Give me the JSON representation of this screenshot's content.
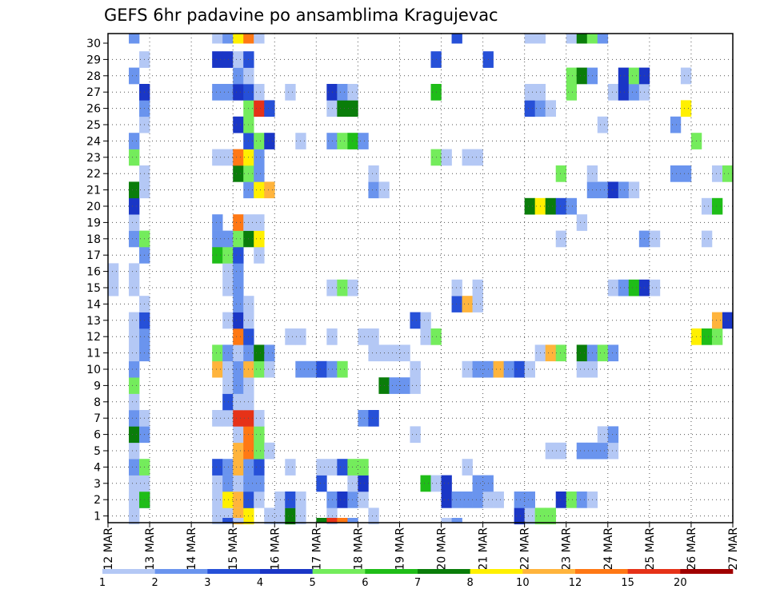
{
  "chart_data": {
    "type": "heatmap",
    "title": "GEFS 6hr padavine po ansamblima Kragujevac",
    "xlabel": "",
    "ylabel": "",
    "x_ticks": [
      "12 MAR",
      "13 MAR",
      "14 MAR",
      "15 MAR",
      "16 MAR",
      "17 MAR",
      "18 MAR",
      "19 MAR",
      "20 MAR",
      "21 MAR",
      "22 MAR",
      "23 MAR",
      "24 MAR",
      "25 MAR",
      "26 MAR",
      "27 MAR"
    ],
    "y_ticks": [
      "1",
      "2",
      "3",
      "4",
      "5",
      "6",
      "7",
      "8",
      "9",
      "10",
      "11",
      "12",
      "13",
      "14",
      "15",
      "16",
      "17",
      "18",
      "19",
      "20",
      "21",
      "22",
      "23",
      "24",
      "25",
      "26",
      "27",
      "28",
      "29",
      "30"
    ],
    "members_range": [
      1,
      30
    ],
    "time_steps_6h": 60,
    "grid": "dotted",
    "colorbar": {
      "levels": [
        "1",
        "2",
        "3",
        "4",
        "5",
        "6",
        "7",
        "8",
        "10",
        "12",
        "15",
        "20"
      ],
      "colors": [
        "#b4c8f5",
        "#6a94ee",
        "#2650d8",
        "#1a36c6",
        "#74ec5c",
        "#1fbd18",
        "#0a7d0a",
        "#fff000",
        "#ffb43c",
        "#ff7814",
        "#e63218",
        "#a00000"
      ]
    },
    "cells": [
      [
        2,
        1,
        1
      ],
      [
        2,
        2,
        1
      ],
      [
        3,
        2,
        4
      ],
      [
        10,
        1,
        1
      ],
      [
        11,
        1,
        1
      ],
      [
        12,
        1,
        9
      ],
      [
        12,
        2,
        1
      ],
      [
        13,
        1,
        8
      ],
      [
        13,
        2,
        4
      ],
      [
        15,
        1,
        1
      ],
      [
        16,
        1,
        1
      ],
      [
        17,
        1,
        7
      ],
      [
        17,
        2,
        2
      ],
      [
        18,
        1,
        1
      ],
      [
        21,
        1,
        1
      ],
      [
        25,
        1,
        1
      ],
      [
        39,
        1,
        4
      ],
      [
        40,
        1,
        1
      ],
      [
        41,
        1,
        5
      ],
      [
        42,
        1,
        5
      ],
      [
        2,
        2,
        1
      ],
      [
        3,
        2,
        6
      ],
      [
        10,
        2,
        1
      ],
      [
        11,
        2,
        8
      ],
      [
        12,
        2,
        9
      ],
      [
        13,
        2,
        3
      ],
      [
        14,
        2,
        1
      ],
      [
        16,
        2,
        1
      ],
      [
        17,
        2,
        3
      ],
      [
        18,
        2,
        1
      ],
      [
        21,
        2,
        2
      ],
      [
        22,
        2,
        4
      ],
      [
        23,
        2,
        2
      ],
      [
        24,
        2,
        1
      ],
      [
        32,
        2,
        4
      ],
      [
        33,
        2,
        2
      ],
      [
        34,
        2,
        2
      ],
      [
        35,
        2,
        2
      ],
      [
        36,
        2,
        1
      ],
      [
        37,
        2,
        1
      ],
      [
        39,
        2,
        2
      ],
      [
        40,
        2,
        2
      ],
      [
        43,
        2,
        4
      ],
      [
        44,
        2,
        5
      ],
      [
        45,
        2,
        2
      ],
      [
        46,
        2,
        1
      ],
      [
        2,
        3,
        1
      ],
      [
        3,
        3,
        1
      ],
      [
        10,
        3,
        1
      ],
      [
        11,
        3,
        2
      ],
      [
        12,
        3,
        1
      ],
      [
        13,
        3,
        2
      ],
      [
        14,
        3,
        2
      ],
      [
        20,
        3,
        3
      ],
      [
        23,
        3,
        1
      ],
      [
        24,
        3,
        4
      ],
      [
        30,
        3,
        6
      ],
      [
        31,
        3,
        1
      ],
      [
        32,
        3,
        4
      ],
      [
        35,
        3,
        2
      ],
      [
        36,
        3,
        2
      ],
      [
        2,
        4,
        2
      ],
      [
        3,
        4,
        5
      ],
      [
        10,
        4,
        3
      ],
      [
        11,
        4,
        2
      ],
      [
        12,
        4,
        9
      ],
      [
        13,
        4,
        2
      ],
      [
        14,
        4,
        3
      ],
      [
        17,
        4,
        1
      ],
      [
        20,
        4,
        1
      ],
      [
        21,
        4,
        1
      ],
      [
        22,
        4,
        3
      ],
      [
        23,
        4,
        5
      ],
      [
        24,
        4,
        5
      ],
      [
        34,
        4,
        1
      ],
      [
        2,
        5,
        1
      ],
      [
        12,
        5,
        9
      ],
      [
        13,
        5,
        10
      ],
      [
        14,
        5,
        5
      ],
      [
        15,
        5,
        1
      ],
      [
        42,
        5,
        1
      ],
      [
        43,
        5,
        1
      ],
      [
        45,
        5,
        2
      ],
      [
        46,
        5,
        2
      ],
      [
        47,
        5,
        2
      ],
      [
        48,
        5,
        1
      ],
      [
        2,
        6,
        7
      ],
      [
        3,
        6,
        2
      ],
      [
        12,
        6,
        1
      ],
      [
        13,
        6,
        10
      ],
      [
        14,
        6,
        5
      ],
      [
        29,
        6,
        1
      ],
      [
        47,
        6,
        1
      ],
      [
        48,
        6,
        2
      ],
      [
        2,
        7,
        2
      ],
      [
        3,
        7,
        1
      ],
      [
        10,
        7,
        1
      ],
      [
        11,
        7,
        1
      ],
      [
        12,
        7,
        11
      ],
      [
        13,
        7,
        11
      ],
      [
        14,
        7,
        1
      ],
      [
        24,
        7,
        2
      ],
      [
        25,
        7,
        3
      ],
      [
        2,
        8,
        1
      ],
      [
        11,
        8,
        3
      ],
      [
        12,
        8,
        1
      ],
      [
        13,
        8,
        1
      ],
      [
        2,
        9,
        5
      ],
      [
        11,
        9,
        1
      ],
      [
        12,
        9,
        2
      ],
      [
        13,
        9,
        1
      ],
      [
        26,
        9,
        7
      ],
      [
        27,
        9,
        2
      ],
      [
        28,
        9,
        2
      ],
      [
        29,
        9,
        1
      ],
      [
        2,
        10,
        2
      ],
      [
        10,
        10,
        9
      ],
      [
        11,
        10,
        1
      ],
      [
        12,
        10,
        2
      ],
      [
        13,
        10,
        9
      ],
      [
        14,
        10,
        5
      ],
      [
        15,
        10,
        1
      ],
      [
        18,
        10,
        2
      ],
      [
        19,
        10,
        2
      ],
      [
        20,
        10,
        3
      ],
      [
        21,
        10,
        2
      ],
      [
        22,
        10,
        5
      ],
      [
        29,
        10,
        1
      ],
      [
        34,
        10,
        1
      ],
      [
        35,
        10,
        2
      ],
      [
        36,
        10,
        2
      ],
      [
        37,
        10,
        9
      ],
      [
        38,
        10,
        2
      ],
      [
        39,
        10,
        3
      ],
      [
        40,
        10,
        1
      ],
      [
        45,
        10,
        1
      ],
      [
        46,
        10,
        1
      ],
      [
        2,
        11,
        1
      ],
      [
        3,
        11,
        2
      ],
      [
        10,
        11,
        5
      ],
      [
        11,
        11,
        2
      ],
      [
        12,
        11,
        1
      ],
      [
        13,
        11,
        2
      ],
      [
        14,
        11,
        7
      ],
      [
        15,
        11,
        2
      ],
      [
        25,
        11,
        1
      ],
      [
        26,
        11,
        1
      ],
      [
        27,
        11,
        1
      ],
      [
        28,
        11,
        1
      ],
      [
        41,
        11,
        1
      ],
      [
        42,
        11,
        9
      ],
      [
        43,
        11,
        5
      ],
      [
        45,
        11,
        7
      ],
      [
        46,
        11,
        2
      ],
      [
        47,
        11,
        5
      ],
      [
        48,
        11,
        2
      ],
      [
        2,
        12,
        1
      ],
      [
        3,
        12,
        2
      ],
      [
        12,
        12,
        10
      ],
      [
        13,
        12,
        3
      ],
      [
        17,
        12,
        1
      ],
      [
        18,
        12,
        1
      ],
      [
        21,
        12,
        1
      ],
      [
        24,
        12,
        1
      ],
      [
        25,
        12,
        1
      ],
      [
        30,
        12,
        1
      ],
      [
        31,
        12,
        5
      ],
      [
        56,
        12,
        8
      ],
      [
        57,
        12,
        6
      ],
      [
        58,
        12,
        5
      ],
      [
        2,
        13,
        1
      ],
      [
        3,
        13,
        3
      ],
      [
        11,
        13,
        1
      ],
      [
        12,
        13,
        4
      ],
      [
        13,
        13,
        1
      ],
      [
        29,
        13,
        3
      ],
      [
        30,
        13,
        1
      ],
      [
        58,
        13,
        9
      ],
      [
        59,
        13,
        4
      ],
      [
        3,
        14,
        1
      ],
      [
        12,
        14,
        2
      ],
      [
        13,
        14,
        1
      ],
      [
        33,
        14,
        3
      ],
      [
        34,
        14,
        9
      ],
      [
        35,
        14,
        1
      ],
      [
        0,
        15,
        1
      ],
      [
        2,
        15,
        1
      ],
      [
        11,
        15,
        1
      ],
      [
        12,
        15,
        2
      ],
      [
        21,
        15,
        1
      ],
      [
        22,
        15,
        5
      ],
      [
        23,
        15,
        1
      ],
      [
        33,
        15,
        1
      ],
      [
        35,
        15,
        1
      ],
      [
        48,
        15,
        1
      ],
      [
        49,
        15,
        2
      ],
      [
        50,
        15,
        6
      ],
      [
        51,
        15,
        4
      ],
      [
        52,
        15,
        1
      ],
      [
        0,
        16,
        1
      ],
      [
        2,
        16,
        1
      ],
      [
        11,
        16,
        1
      ],
      [
        12,
        16,
        2
      ],
      [
        3,
        17,
        2
      ],
      [
        10,
        17,
        6
      ],
      [
        11,
        17,
        5
      ],
      [
        12,
        17,
        3
      ],
      [
        14,
        17,
        1
      ],
      [
        2,
        18,
        2
      ],
      [
        3,
        18,
        5
      ],
      [
        10,
        18,
        2
      ],
      [
        11,
        18,
        2
      ],
      [
        12,
        18,
        5
      ],
      [
        13,
        18,
        7
      ],
      [
        14,
        18,
        8
      ],
      [
        43,
        18,
        1
      ],
      [
        51,
        18,
        2
      ],
      [
        52,
        18,
        1
      ],
      [
        57,
        18,
        1
      ],
      [
        2,
        19,
        1
      ],
      [
        10,
        19,
        2
      ],
      [
        12,
        19,
        10
      ],
      [
        13,
        19,
        1
      ],
      [
        14,
        19,
        1
      ],
      [
        45,
        19,
        1
      ],
      [
        2,
        20,
        4
      ],
      [
        40,
        20,
        7
      ],
      [
        41,
        20,
        8
      ],
      [
        42,
        20,
        7
      ],
      [
        43,
        20,
        3
      ],
      [
        44,
        20,
        2
      ],
      [
        57,
        20,
        1
      ],
      [
        58,
        20,
        6
      ],
      [
        2,
        21,
        7
      ],
      [
        3,
        21,
        1
      ],
      [
        13,
        21,
        2
      ],
      [
        14,
        21,
        8
      ],
      [
        15,
        21,
        9
      ],
      [
        25,
        21,
        2
      ],
      [
        26,
        21,
        1
      ],
      [
        46,
        21,
        2
      ],
      [
        47,
        21,
        2
      ],
      [
        48,
        21,
        4
      ],
      [
        49,
        21,
        2
      ],
      [
        50,
        21,
        1
      ],
      [
        3,
        22,
        1
      ],
      [
        12,
        22,
        7
      ],
      [
        13,
        22,
        5
      ],
      [
        14,
        22,
        2
      ],
      [
        25,
        22,
        1
      ],
      [
        43,
        22,
        5
      ],
      [
        46,
        22,
        1
      ],
      [
        54,
        22,
        2
      ],
      [
        55,
        22,
        2
      ],
      [
        58,
        22,
        1
      ],
      [
        59,
        22,
        5
      ],
      [
        2,
        23,
        5
      ],
      [
        10,
        23,
        1
      ],
      [
        11,
        23,
        1
      ],
      [
        12,
        23,
        10
      ],
      [
        13,
        23,
        8
      ],
      [
        14,
        23,
        2
      ],
      [
        31,
        23,
        5
      ],
      [
        32,
        23,
        1
      ],
      [
        34,
        23,
        1
      ],
      [
        35,
        23,
        1
      ],
      [
        2,
        24,
        2
      ],
      [
        13,
        24,
        3
      ],
      [
        14,
        24,
        5
      ],
      [
        15,
        24,
        4
      ],
      [
        18,
        24,
        1
      ],
      [
        21,
        24,
        2
      ],
      [
        22,
        24,
        5
      ],
      [
        23,
        24,
        6
      ],
      [
        24,
        24,
        2
      ],
      [
        56,
        24,
        5
      ],
      [
        3,
        25,
        1
      ],
      [
        12,
        25,
        4
      ],
      [
        13,
        25,
        5
      ],
      [
        47,
        25,
        1
      ],
      [
        54,
        25,
        2
      ],
      [
        3,
        26,
        2
      ],
      [
        13,
        26,
        5
      ],
      [
        14,
        26,
        11
      ],
      [
        15,
        26,
        3
      ],
      [
        21,
        26,
        1
      ],
      [
        22,
        26,
        7
      ],
      [
        23,
        26,
        7
      ],
      [
        40,
        26,
        3
      ],
      [
        41,
        26,
        2
      ],
      [
        42,
        26,
        1
      ],
      [
        55,
        26,
        8
      ],
      [
        3,
        27,
        4
      ],
      [
        10,
        27,
        2
      ],
      [
        11,
        27,
        2
      ],
      [
        12,
        27,
        4
      ],
      [
        13,
        27,
        3
      ],
      [
        14,
        27,
        1
      ],
      [
        17,
        27,
        1
      ],
      [
        21,
        27,
        4
      ],
      [
        22,
        27,
        2
      ],
      [
        23,
        27,
        1
      ],
      [
        31,
        27,
        6
      ],
      [
        40,
        27,
        1
      ],
      [
        41,
        27,
        1
      ],
      [
        44,
        27,
        5
      ],
      [
        48,
        27,
        1
      ],
      [
        49,
        27,
        4
      ],
      [
        50,
        27,
        2
      ],
      [
        51,
        27,
        1
      ],
      [
        2,
        28,
        2
      ],
      [
        12,
        28,
        2
      ],
      [
        13,
        28,
        1
      ],
      [
        44,
        28,
        5
      ],
      [
        45,
        28,
        7
      ],
      [
        46,
        28,
        2
      ],
      [
        49,
        28,
        4
      ],
      [
        50,
        28,
        5
      ],
      [
        51,
        28,
        4
      ],
      [
        55,
        28,
        1
      ],
      [
        3,
        29,
        1
      ],
      [
        10,
        29,
        4
      ],
      [
        11,
        29,
        4
      ],
      [
        12,
        29,
        1
      ],
      [
        13,
        29,
        3
      ],
      [
        31,
        29,
        3
      ],
      [
        36,
        29,
        3
      ],
      [
        2,
        30,
        2
      ],
      [
        10,
        30,
        1
      ],
      [
        11,
        30,
        2
      ],
      [
        12,
        30,
        8
      ],
      [
        13,
        30,
        10
      ],
      [
        14,
        30,
        1
      ],
      [
        33,
        30,
        3
      ],
      [
        40,
        30,
        1
      ],
      [
        41,
        30,
        1
      ],
      [
        44,
        30,
        1
      ],
      [
        45,
        30,
        7
      ],
      [
        46,
        30,
        5
      ],
      [
        47,
        30,
        2
      ],
      [
        11,
        0,
        3
      ],
      [
        12,
        0,
        1
      ],
      [
        20,
        0,
        7
      ],
      [
        21,
        0,
        11
      ],
      [
        22,
        0,
        10
      ],
      [
        23,
        0,
        2
      ],
      [
        32,
        0,
        1
      ],
      [
        33,
        0,
        2
      ]
    ]
  }
}
